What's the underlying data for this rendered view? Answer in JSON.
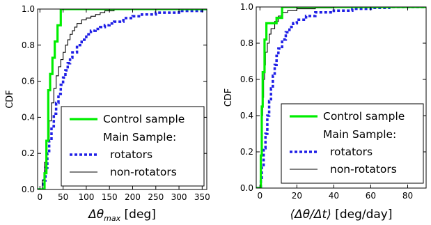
{
  "chart_data": [
    {
      "type": "line",
      "xlabel": "Δθ_max [deg]",
      "xlabel_main": "Δθ",
      "xlabel_sub": "max",
      "xlabel_unit": " [deg]",
      "ylabel": "CDF",
      "xlim": [
        -5,
        360
      ],
      "ylim": [
        0,
        1.0
      ],
      "xticks": [
        "0",
        "50",
        "100",
        "150",
        "200",
        "250",
        "300",
        "350"
      ],
      "xtick_values": [
        0,
        50,
        100,
        150,
        200,
        250,
        300,
        350
      ],
      "yticks": [
        "0.0",
        "0.2",
        "0.4",
        "0.6",
        "0.8",
        "1.0"
      ],
      "ytick_values": [
        0,
        0.2,
        0.4,
        0.6,
        0.8,
        1.0
      ],
      "legend": {
        "placement": "lower-right",
        "entries": [
          {
            "label": "Control sample",
            "style": "control"
          },
          {
            "label": "Main Sample:",
            "style": "none"
          },
          {
            "label": "rotators",
            "style": "rotators"
          },
          {
            "label": "non-rotators",
            "style": "nonrot"
          }
        ]
      },
      "series": [
        {
          "name": "Control sample",
          "style": "control",
          "color": "#00ee00",
          "x": [
            10,
            14,
            18,
            22,
            27,
            32,
            38,
            45
          ],
          "y": [
            0.09,
            0.27,
            0.55,
            0.64,
            0.73,
            0.82,
            0.91,
            1.0
          ]
        },
        {
          "name": "rotators",
          "style": "rotators",
          "color": "#1f1fe6",
          "x": [
            8,
            12,
            16,
            20,
            25,
            30,
            35,
            40,
            45,
            50,
            55,
            60,
            65,
            70,
            80,
            90,
            100,
            110,
            120,
            130,
            140,
            150,
            160,
            180,
            200,
            220,
            250,
            300,
            350
          ],
          "y": [
            0.05,
            0.12,
            0.2,
            0.27,
            0.35,
            0.42,
            0.48,
            0.53,
            0.58,
            0.62,
            0.66,
            0.7,
            0.73,
            0.76,
            0.8,
            0.83,
            0.86,
            0.88,
            0.89,
            0.9,
            0.91,
            0.92,
            0.93,
            0.95,
            0.96,
            0.97,
            0.98,
            0.99,
            1.0
          ]
        },
        {
          "name": "non-rotators",
          "style": "nonrot",
          "color": "#000000",
          "x": [
            5,
            10,
            15,
            20,
            25,
            30,
            35,
            40,
            45,
            50,
            55,
            60,
            65,
            70,
            75,
            80,
            90,
            100,
            110,
            120,
            130,
            140,
            150,
            160,
            250
          ],
          "y": [
            0.05,
            0.15,
            0.27,
            0.38,
            0.48,
            0.56,
            0.63,
            0.68,
            0.72,
            0.76,
            0.8,
            0.83,
            0.86,
            0.88,
            0.9,
            0.92,
            0.94,
            0.95,
            0.96,
            0.97,
            0.98,
            0.99,
            0.99,
            1.0,
            1.0
          ]
        }
      ]
    },
    {
      "type": "line",
      "xlabel": "⟨Δθ/Δt⟩ [deg/day]",
      "xlabel_main": "⟨Δθ/Δt⟩",
      "xlabel_unit": " [deg/day]",
      "ylabel": "CDF",
      "xlim": [
        -2,
        90
      ],
      "ylim": [
        0,
        1.0
      ],
      "xticks": [
        "0",
        "20",
        "40",
        "60",
        "80"
      ],
      "xtick_values": [
        0,
        20,
        40,
        60,
        80
      ],
      "yticks": [
        "0.0",
        "0.2",
        "0.4",
        "0.6",
        "0.8",
        "1.0"
      ],
      "ytick_values": [
        0,
        0.2,
        0.4,
        0.6,
        0.8,
        1.0
      ],
      "legend": {
        "placement": "lower-right",
        "entries": [
          {
            "label": "Control sample",
            "style": "control"
          },
          {
            "label": "Main Sample:",
            "style": "none"
          },
          {
            "label": "rotators",
            "style": "rotators"
          },
          {
            "label": "non-rotators",
            "style": "nonrot"
          }
        ]
      },
      "series": [
        {
          "name": "Control sample",
          "style": "control",
          "color": "#00ee00",
          "x": [
            0.5,
            1,
            1.5,
            2.5,
            3.5,
            6,
            9,
            12
          ],
          "y": [
            0.18,
            0.45,
            0.64,
            0.82,
            0.91,
            0.91,
            0.94,
            1.0
          ]
        },
        {
          "name": "rotators",
          "style": "rotators",
          "color": "#1f1fe6",
          "x": [
            0.5,
            1,
            2,
            3,
            4,
            5,
            6,
            7,
            8,
            9,
            10,
            12,
            14,
            16,
            18,
            20,
            25,
            30,
            40,
            50,
            60,
            70
          ],
          "y": [
            0.05,
            0.12,
            0.22,
            0.3,
            0.4,
            0.48,
            0.55,
            0.62,
            0.68,
            0.73,
            0.77,
            0.82,
            0.86,
            0.89,
            0.91,
            0.93,
            0.95,
            0.97,
            0.98,
            0.99,
            0.995,
            1.0
          ]
        },
        {
          "name": "non-rotators",
          "style": "nonrot",
          "color": "#000000",
          "x": [
            0.3,
            0.7,
            1,
            1.5,
            2,
            2.5,
            3,
            4,
            5,
            6,
            8,
            10,
            12,
            15,
            20,
            30,
            40,
            88
          ],
          "y": [
            0.1,
            0.25,
            0.4,
            0.5,
            0.6,
            0.68,
            0.75,
            0.8,
            0.85,
            0.88,
            0.92,
            0.95,
            0.97,
            0.98,
            0.99,
            0.995,
            1.0,
            1.0
          ]
        }
      ]
    }
  ]
}
